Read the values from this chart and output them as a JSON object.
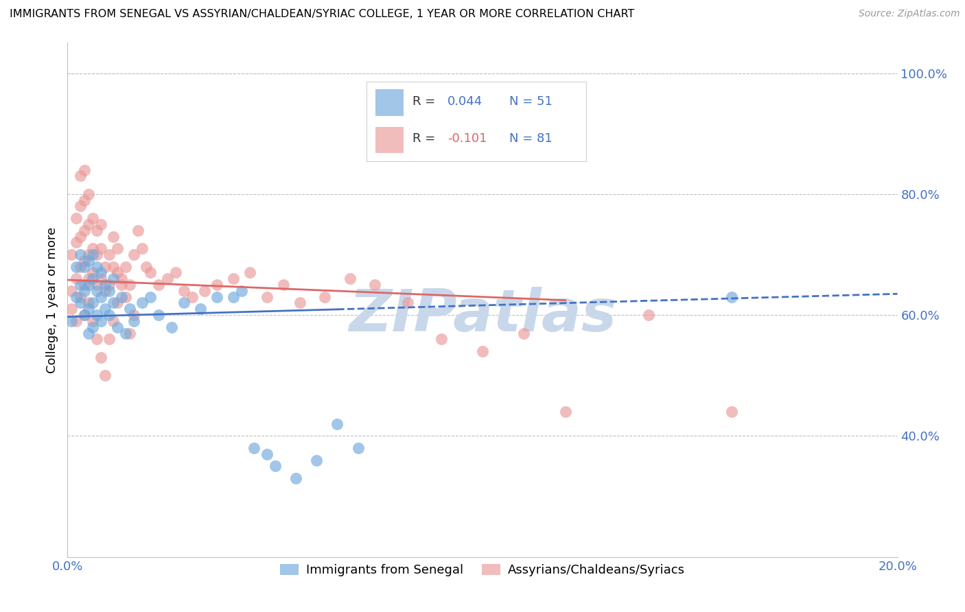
{
  "title": "IMMIGRANTS FROM SENEGAL VS ASSYRIAN/CHALDEAN/SYRIAC COLLEGE, 1 YEAR OR MORE CORRELATION CHART",
  "source": "Source: ZipAtlas.com",
  "ylabel": "College, 1 year or more",
  "xlim": [
    0.0,
    0.2
  ],
  "ylim": [
    0.2,
    1.05
  ],
  "right_yticks": [
    0.4,
    0.6,
    0.8,
    1.0
  ],
  "right_yticklabels": [
    "40.0%",
    "60.0%",
    "80.0%",
    "100.0%"
  ],
  "xtick_positions": [
    0.0,
    0.04,
    0.08,
    0.12,
    0.16,
    0.2
  ],
  "xticklabels": [
    "0.0%",
    "",
    "",
    "",
    "",
    "20.0%"
  ],
  "blue_scatter_color": "#6fa8dc",
  "pink_scatter_color": "#ea9999",
  "blue_line_color": "#4472c4",
  "pink_line_color": "#e06666",
  "text_blue": "#4472c4",
  "watermark": "ZIPatlas",
  "watermark_color": "#c8d8ea",
  "legend_R1": "R = 0.044",
  "legend_N1": "N = 51",
  "legend_R2": "R = -0.101",
  "legend_N2": "N = 81",
  "series1_label": "Immigrants from Senegal",
  "series2_label": "Assyrians/Chaldeans/Syriacs",
  "grid_color": "#c0c0c0",
  "blue_x": [
    0.001,
    0.002,
    0.002,
    0.003,
    0.003,
    0.003,
    0.004,
    0.004,
    0.004,
    0.005,
    0.005,
    0.005,
    0.005,
    0.006,
    0.006,
    0.006,
    0.006,
    0.007,
    0.007,
    0.007,
    0.008,
    0.008,
    0.008,
    0.009,
    0.009,
    0.01,
    0.01,
    0.011,
    0.011,
    0.012,
    0.013,
    0.014,
    0.015,
    0.016,
    0.018,
    0.02,
    0.022,
    0.025,
    0.028,
    0.032,
    0.036,
    0.04,
    0.042,
    0.045,
    0.048,
    0.05,
    0.055,
    0.06,
    0.065,
    0.07,
    0.16
  ],
  "blue_y": [
    0.59,
    0.63,
    0.68,
    0.62,
    0.65,
    0.7,
    0.6,
    0.64,
    0.68,
    0.57,
    0.61,
    0.65,
    0.69,
    0.58,
    0.62,
    0.66,
    0.7,
    0.6,
    0.64,
    0.68,
    0.59,
    0.63,
    0.67,
    0.61,
    0.65,
    0.6,
    0.64,
    0.62,
    0.66,
    0.58,
    0.63,
    0.57,
    0.61,
    0.59,
    0.62,
    0.63,
    0.6,
    0.58,
    0.62,
    0.61,
    0.63,
    0.63,
    0.64,
    0.38,
    0.37,
    0.35,
    0.33,
    0.36,
    0.42,
    0.38,
    0.63
  ],
  "pink_x": [
    0.001,
    0.001,
    0.002,
    0.002,
    0.002,
    0.003,
    0.003,
    0.003,
    0.003,
    0.004,
    0.004,
    0.004,
    0.004,
    0.004,
    0.005,
    0.005,
    0.005,
    0.005,
    0.006,
    0.006,
    0.006,
    0.007,
    0.007,
    0.007,
    0.008,
    0.008,
    0.008,
    0.009,
    0.009,
    0.01,
    0.01,
    0.011,
    0.011,
    0.012,
    0.012,
    0.013,
    0.014,
    0.015,
    0.016,
    0.017,
    0.018,
    0.019,
    0.02,
    0.022,
    0.024,
    0.026,
    0.028,
    0.03,
    0.033,
    0.036,
    0.04,
    0.044,
    0.048,
    0.052,
    0.056,
    0.062,
    0.068,
    0.074,
    0.082,
    0.09,
    0.1,
    0.11,
    0.12,
    0.001,
    0.002,
    0.003,
    0.004,
    0.005,
    0.006,
    0.007,
    0.008,
    0.009,
    0.01,
    0.011,
    0.012,
    0.013,
    0.014,
    0.015,
    0.016,
    0.14,
    0.16
  ],
  "pink_y": [
    0.64,
    0.7,
    0.66,
    0.72,
    0.76,
    0.68,
    0.73,
    0.78,
    0.83,
    0.65,
    0.69,
    0.74,
    0.79,
    0.84,
    0.66,
    0.7,
    0.75,
    0.8,
    0.67,
    0.71,
    0.76,
    0.65,
    0.7,
    0.74,
    0.66,
    0.71,
    0.75,
    0.64,
    0.68,
    0.65,
    0.7,
    0.68,
    0.73,
    0.67,
    0.71,
    0.66,
    0.68,
    0.65,
    0.7,
    0.74,
    0.71,
    0.68,
    0.67,
    0.65,
    0.66,
    0.67,
    0.64,
    0.63,
    0.64,
    0.65,
    0.66,
    0.67,
    0.63,
    0.65,
    0.62,
    0.63,
    0.66,
    0.65,
    0.62,
    0.56,
    0.54,
    0.57,
    0.44,
    0.61,
    0.59,
    0.63,
    0.6,
    0.62,
    0.59,
    0.56,
    0.53,
    0.5,
    0.56,
    0.59,
    0.62,
    0.65,
    0.63,
    0.57,
    0.6,
    0.6,
    0.44
  ],
  "blue_trend_x": [
    0.0,
    0.2
  ],
  "blue_trend_y": [
    0.597,
    0.635
  ],
  "pink_trend_x": [
    0.0,
    0.2
  ],
  "pink_trend_y": [
    0.658,
    0.602
  ]
}
